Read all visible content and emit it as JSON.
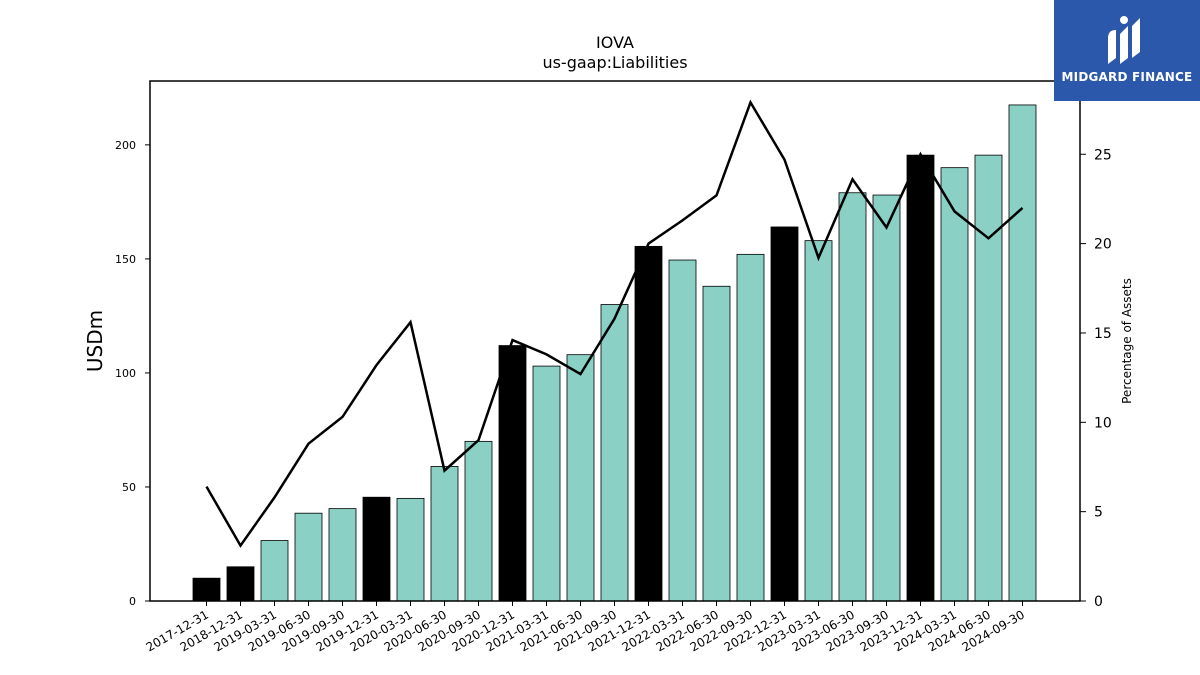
{
  "chart_data": {
    "type": "bar+line",
    "title": "IOVA",
    "subtitle": "us-gaap:Liabilities",
    "ylabel": "USDm",
    "y2label": "Percentage of Assets",
    "ylim": [
      0,
      228
    ],
    "y2lim": [
      0,
      29.1
    ],
    "yticks": [
      "0",
      "50",
      "100",
      "150",
      "200"
    ],
    "y2ticks": [
      "0",
      "5",
      "10",
      "15",
      "20",
      "25"
    ],
    "categories": [
      "2017-12-31",
      "2018-12-31",
      "2019-03-31",
      "2019-06-30",
      "2019-09-30",
      "2019-12-31",
      "2020-03-31",
      "2020-06-30",
      "2020-09-30",
      "2020-12-31",
      "2021-03-31",
      "2021-06-30",
      "2021-09-30",
      "2021-12-31",
      "2022-03-31",
      "2022-06-30",
      "2022-09-30",
      "2022-12-31",
      "2023-03-31",
      "2023-06-30",
      "2023-09-30",
      "2023-12-31",
      "2024-03-31",
      "2024-06-30",
      "2024-09-30"
    ],
    "series": [
      {
        "values": [
          10,
          15,
          26.5,
          38.5,
          40.5,
          45.5,
          45,
          59,
          70,
          112,
          103,
          108,
          130,
          155.5,
          149.5,
          138,
          152,
          164,
          158,
          179,
          178,
          195.5,
          190,
          195.5,
          217.5
        ],
        "fiscal_year_end": [
          true,
          true,
          false,
          false,
          false,
          true,
          false,
          false,
          false,
          true,
          false,
          false,
          false,
          true,
          false,
          false,
          false,
          true,
          false,
          false,
          false,
          true,
          false,
          false,
          false
        ]
      },
      {
        "axis": "right",
        "values": [
          6.4,
          3.1,
          5.8,
          8.8,
          10.3,
          13.2,
          15.6,
          7.3,
          9.0,
          14.6,
          13.8,
          12.7,
          15.8,
          20.0,
          21.3,
          22.7,
          27.9,
          24.7,
          19.2,
          23.6,
          20.9,
          25.0,
          21.8,
          20.3,
          22.0
        ]
      }
    ],
    "colors": {
      "bar_regular": "#8ad0c5",
      "bar_fiscal": "#000000",
      "line": "#000000"
    },
    "grid": false
  },
  "logo": {
    "text": "MIDGARD FINANCE",
    "color": "#2b58aa"
  }
}
